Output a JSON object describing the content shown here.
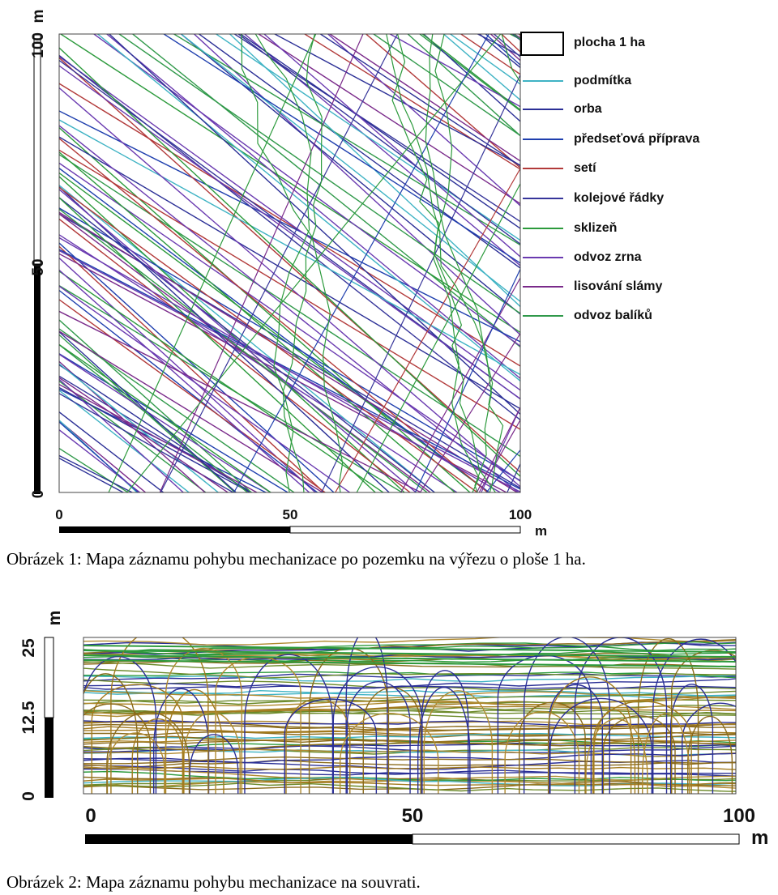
{
  "figure1": {
    "y_scale": {
      "labels": [
        "100",
        "50",
        "0"
      ],
      "unit": "m"
    },
    "x_scale": {
      "labels": [
        "0",
        "50",
        "100"
      ],
      "unit": "m"
    },
    "legend": [
      {
        "label": "plocha 1 ha"
      },
      {
        "label": "podmítka",
        "color": "#3fb3c4"
      },
      {
        "label": "orba",
        "color": "#2b2f96"
      },
      {
        "label": "předseťová příprava",
        "color": "#1f3fae"
      },
      {
        "label": "setí",
        "color": "#b23a3a"
      },
      {
        "label": "kolejové řádky",
        "color": "#36359a"
      },
      {
        "label": "sklizeň",
        "color": "#2c9a3c"
      },
      {
        "label": "odvoz zrna",
        "color": "#6a3ab0"
      },
      {
        "label": "lisování slámy",
        "color": "#7a2a8a"
      },
      {
        "label": "odvoz balíků",
        "color": "#30994a"
      }
    ],
    "caption": "Obrázek 1: Mapa záznamu pohybu mechanizace po pozemku na výřezu o ploše 1 ha."
  },
  "figure2": {
    "y_scale": {
      "labels": [
        "25",
        "12.5",
        "0"
      ],
      "unit": "m"
    },
    "x_scale": {
      "labels": [
        "0",
        "50",
        "100"
      ],
      "unit": "m"
    },
    "caption": "Obrázek 2: Mapa záznamu pohybu mechanizace na souvrati."
  }
}
